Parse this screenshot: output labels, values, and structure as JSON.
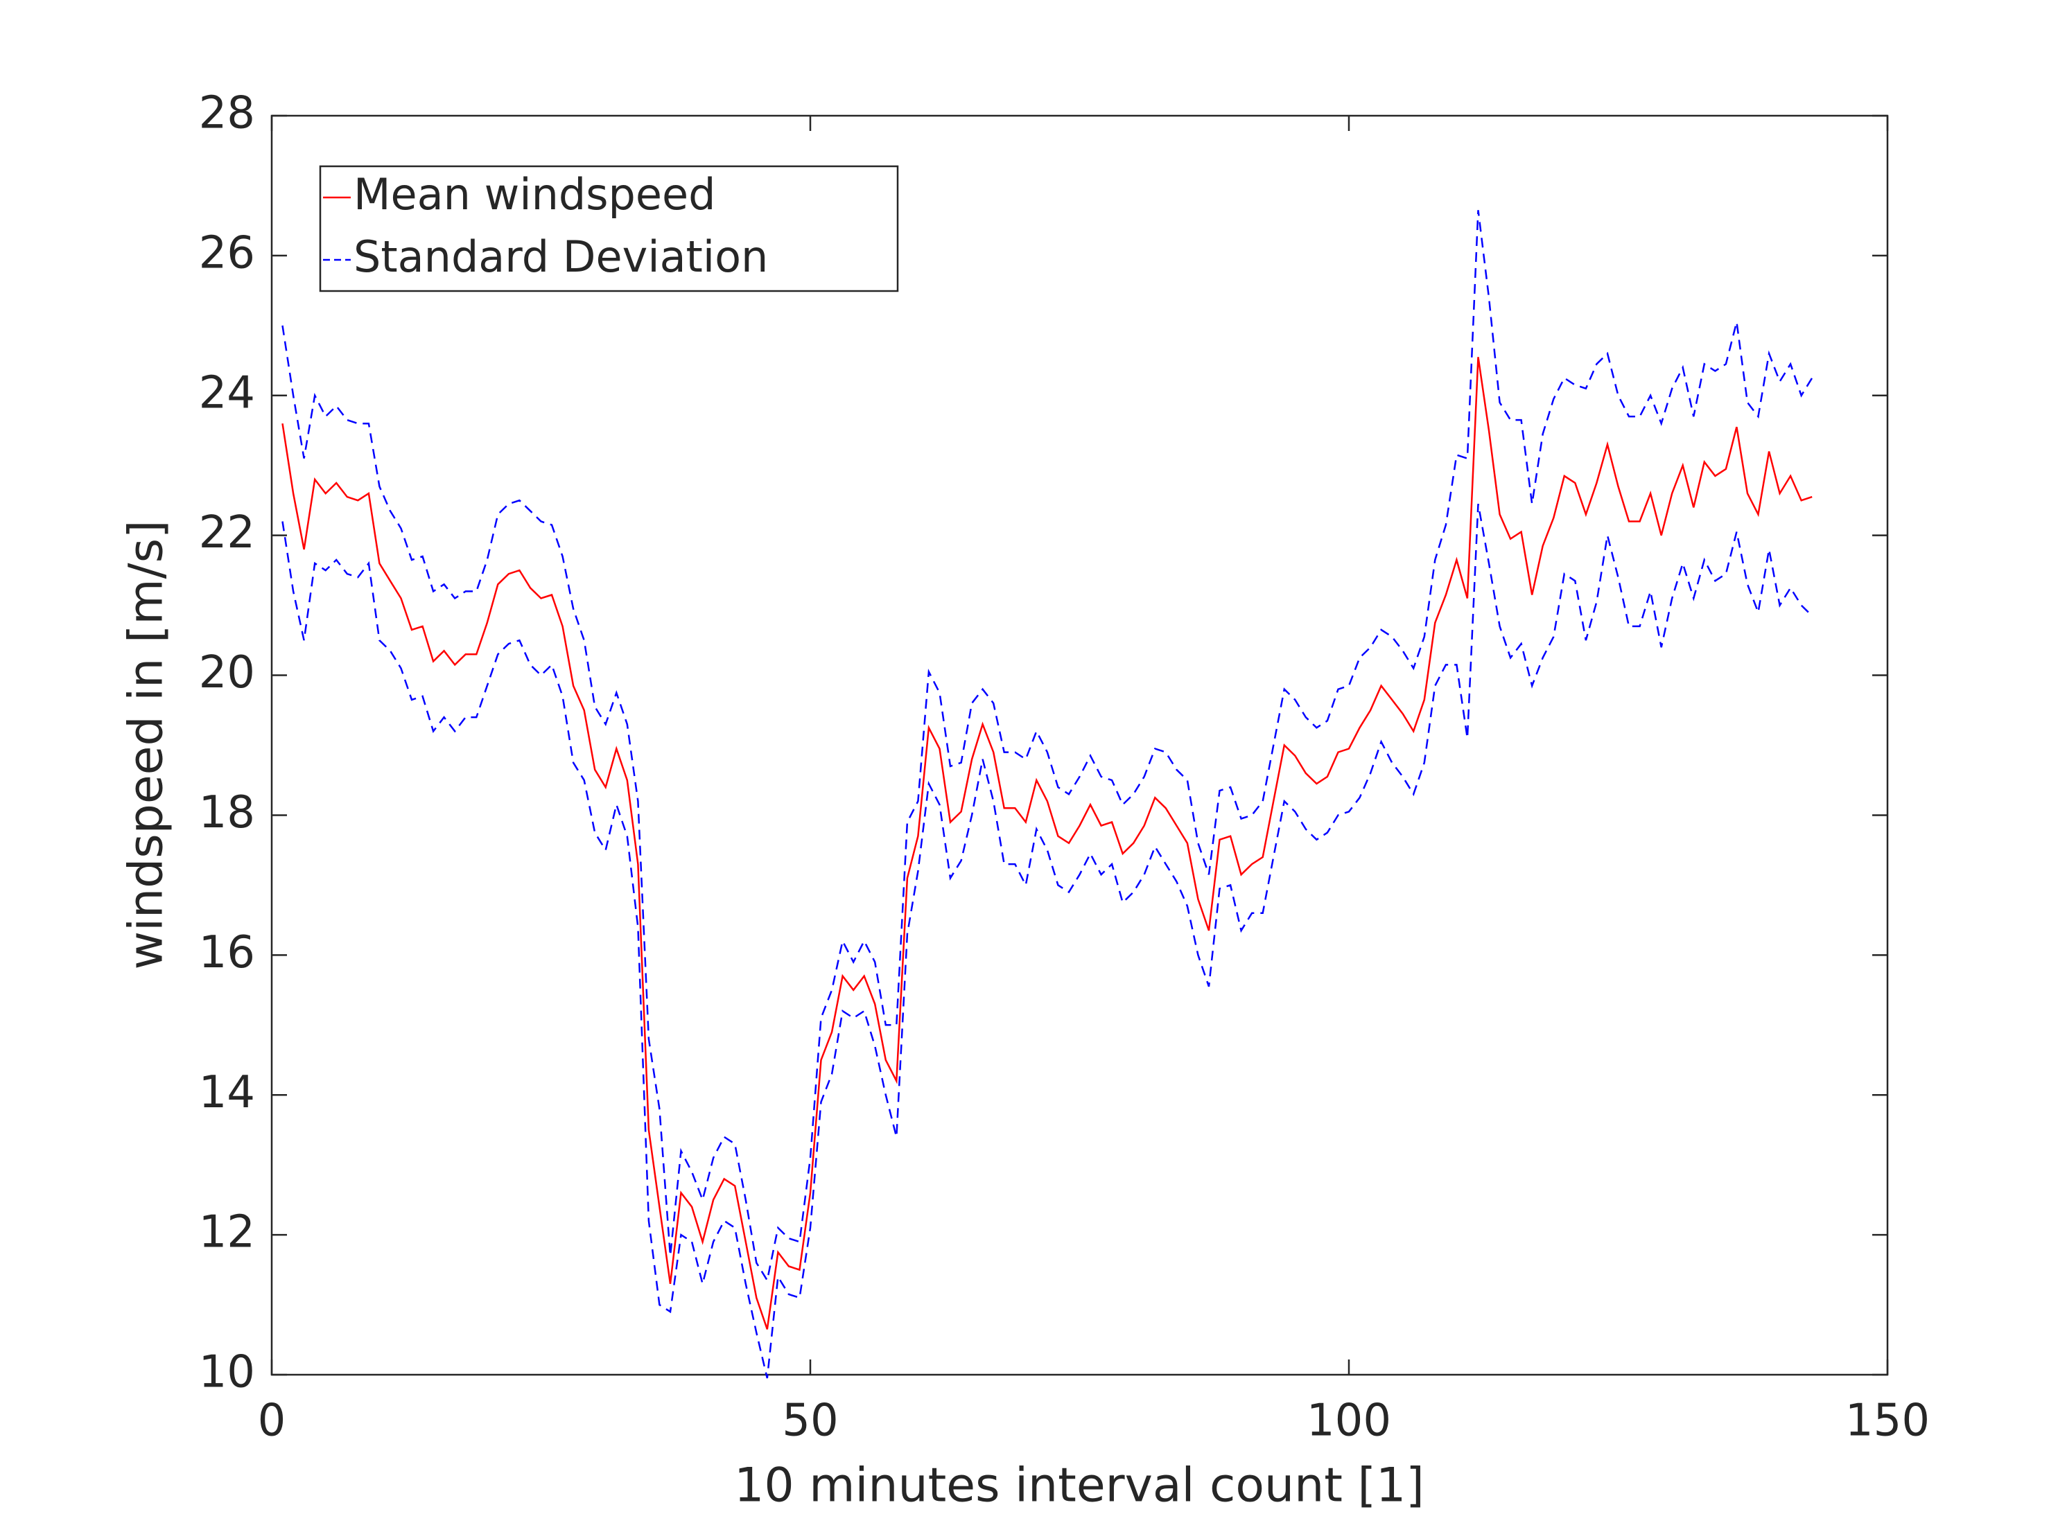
{
  "chart_data": {
    "type": "line",
    "xlabel": "10 minutes interval count [1]",
    "ylabel": "windspeed in [m/s]",
    "x": [
      1,
      2,
      3,
      4,
      5,
      6,
      7,
      8,
      9,
      10,
      11,
      12,
      13,
      14,
      15,
      16,
      17,
      18,
      19,
      20,
      21,
      22,
      23,
      24,
      25,
      26,
      27,
      28,
      29,
      30,
      31,
      32,
      33,
      34,
      35,
      36,
      37,
      38,
      39,
      40,
      41,
      42,
      43,
      44,
      45,
      46,
      47,
      48,
      49,
      50,
      51,
      52,
      53,
      54,
      55,
      56,
      57,
      58,
      59,
      60,
      61,
      62,
      63,
      64,
      65,
      66,
      67,
      68,
      69,
      70,
      71,
      72,
      73,
      74,
      75,
      76,
      77,
      78,
      79,
      80,
      81,
      82,
      83,
      84,
      85,
      86,
      87,
      88,
      89,
      90,
      91,
      92,
      93,
      94,
      95,
      96,
      97,
      98,
      99,
      100,
      101,
      102,
      103,
      104,
      105,
      106,
      107,
      108,
      109,
      110,
      111,
      112,
      113,
      114,
      115,
      116,
      117,
      118,
      119,
      120,
      121,
      122,
      123,
      124,
      125,
      126,
      127,
      128,
      129,
      130,
      131,
      132,
      133,
      134,
      135,
      136,
      137,
      138,
      139,
      140,
      141,
      142,
      143
    ],
    "series": [
      {
        "name": "Mean windspeed",
        "color": "#ff0000",
        "linestyle": "solid",
        "values": [
          23.6,
          22.6,
          21.8,
          22.8,
          22.6,
          22.75,
          22.55,
          22.5,
          22.6,
          21.6,
          21.35,
          21.1,
          20.65,
          20.7,
          20.2,
          20.35,
          20.15,
          20.3,
          20.3,
          20.75,
          21.3,
          21.45,
          21.5,
          21.25,
          21.1,
          21.15,
          20.7,
          19.85,
          19.5,
          18.65,
          18.4,
          18.95,
          18.5,
          17.3,
          13.5,
          12.4,
          11.3,
          12.6,
          12.4,
          11.9,
          12.5,
          12.8,
          12.7,
          11.9,
          11.1,
          10.65,
          11.75,
          11.55,
          11.5,
          12.6,
          14.5,
          14.9,
          15.7,
          15.5,
          15.7,
          15.3,
          14.5,
          14.2,
          17.1,
          17.7,
          19.25,
          18.95,
          17.9,
          18.05,
          18.8,
          19.3,
          18.9,
          18.1,
          18.1,
          17.9,
          18.5,
          18.2,
          17.7,
          17.6,
          17.85,
          18.15,
          17.85,
          17.9,
          17.45,
          17.6,
          17.85,
          18.25,
          18.1,
          17.85,
          17.6,
          16.8,
          16.35,
          17.65,
          17.7,
          17.15,
          17.3,
          17.4,
          18.2,
          19.0,
          18.85,
          18.6,
          18.45,
          18.55,
          18.9,
          18.95,
          19.25,
          19.5,
          19.85,
          19.65,
          19.45,
          19.2,
          19.65,
          20.75,
          21.15,
          21.65,
          21.1,
          24.55,
          23.5,
          22.3,
          21.95,
          22.05,
          21.15,
          21.85,
          22.25,
          22.85,
          22.75,
          22.3,
          22.75,
          23.3,
          22.7,
          22.2,
          22.2,
          22.6,
          22.0,
          22.6,
          23.0,
          22.4,
          23.05,
          22.85,
          22.95,
          23.55,
          22.6,
          22.3,
          23.2,
          22.6,
          22.85,
          22.5,
          22.55
        ]
      },
      {
        "name": "Standard Deviation",
        "color": "#0000ff",
        "linestyle": "dashed",
        "values": [
          1.4,
          1.4,
          1.3,
          1.2,
          1.1,
          1.1,
          1.1,
          1.1,
          1.0,
          1.1,
          1.0,
          1.0,
          1.0,
          1.0,
          1.0,
          0.95,
          0.95,
          0.9,
          0.9,
          0.9,
          1.0,
          1.0,
          1.0,
          1.1,
          1.1,
          1.0,
          1.0,
          1.1,
          1.0,
          0.9,
          0.9,
          0.8,
          0.8,
          0.9,
          1.3,
          1.4,
          0.4,
          0.6,
          0.5,
          0.6,
          0.6,
          0.6,
          0.6,
          0.6,
          0.5,
          0.7,
          0.35,
          0.4,
          0.4,
          0.5,
          0.6,
          0.6,
          0.5,
          0.4,
          0.5,
          0.6,
          0.5,
          0.8,
          0.8,
          0.5,
          0.8,
          0.8,
          0.8,
          0.7,
          0.8,
          0.5,
          0.7,
          0.8,
          0.8,
          0.9,
          0.7,
          0.7,
          0.7,
          0.7,
          0.7,
          0.7,
          0.7,
          0.6,
          0.7,
          0.7,
          0.7,
          0.7,
          0.8,
          0.8,
          0.9,
          0.8,
          0.8,
          0.7,
          0.7,
          0.8,
          0.7,
          0.8,
          0.8,
          0.8,
          0.8,
          0.8,
          0.8,
          0.8,
          0.9,
          0.9,
          1.0,
          0.9,
          0.8,
          0.9,
          0.9,
          0.9,
          0.9,
          0.9,
          1.0,
          1.5,
          2.0,
          2.1,
          1.9,
          1.6,
          1.7,
          1.6,
          1.3,
          1.6,
          1.7,
          1.4,
          1.4,
          1.8,
          1.7,
          1.3,
          1.3,
          1.5,
          1.5,
          1.4,
          1.6,
          1.5,
          1.4,
          1.3,
          1.4,
          1.5,
          1.5,
          1.5,
          1.3,
          1.4,
          1.4,
          1.6,
          1.6,
          1.5,
          1.7
        ]
      }
    ],
    "xlim": [
      0,
      150
    ],
    "xticks": [
      0,
      50,
      100,
      150
    ],
    "ylim": [
      10,
      28
    ],
    "yticks": [
      10,
      12,
      14,
      16,
      18,
      20,
      22,
      24,
      26,
      28
    ],
    "legend": "upper left",
    "grid": false
  }
}
